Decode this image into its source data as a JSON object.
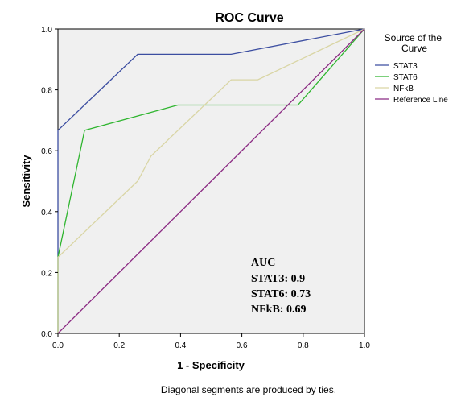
{
  "chart_data": {
    "type": "line",
    "title": "ROC Curve",
    "xlabel": "1 - Specificity",
    "ylabel": "Sensitivity",
    "xlim": [
      0,
      1
    ],
    "ylim": [
      0,
      1
    ],
    "x_ticks": [
      "0.0",
      "0.2",
      "0.4",
      "0.6",
      "0.8",
      "1.0"
    ],
    "y_ticks": [
      "0.0",
      "0.2",
      "0.4",
      "0.6",
      "0.8",
      "1.0"
    ],
    "legend_title": "Source of the Curve",
    "legend_position": "right",
    "grid": false,
    "series": [
      {
        "name": "STAT3",
        "color": "#3c4ea1",
        "x": [
          0,
          0,
          0.26,
          0.565,
          1.0
        ],
        "y": [
          0,
          0.667,
          0.917,
          0.917,
          1.0
        ]
      },
      {
        "name": "STAT6",
        "color": "#2fb52f",
        "x": [
          0,
          0,
          0.087,
          0.391,
          0.783,
          1.0
        ],
        "y": [
          0,
          0.25,
          0.667,
          0.75,
          0.75,
          1.0
        ]
      },
      {
        "name": "NFkB",
        "color": "#d9d5a4",
        "x": [
          0,
          0,
          0.26,
          0.304,
          0.565,
          0.652,
          1.0
        ],
        "y": [
          0,
          0.25,
          0.5,
          0.583,
          0.833,
          0.833,
          1.0
        ]
      },
      {
        "name": "Reference Line",
        "color": "#8b2b83",
        "x": [
          0,
          1
        ],
        "y": [
          0,
          1
        ]
      }
    ],
    "annotation": {
      "heading": "AUC",
      "lines": [
        "STAT3:  0.9",
        "STAT6:  0.73",
        "NFkB:  0.69"
      ]
    },
    "footnote": "Diagonal segments are produced by ties."
  }
}
